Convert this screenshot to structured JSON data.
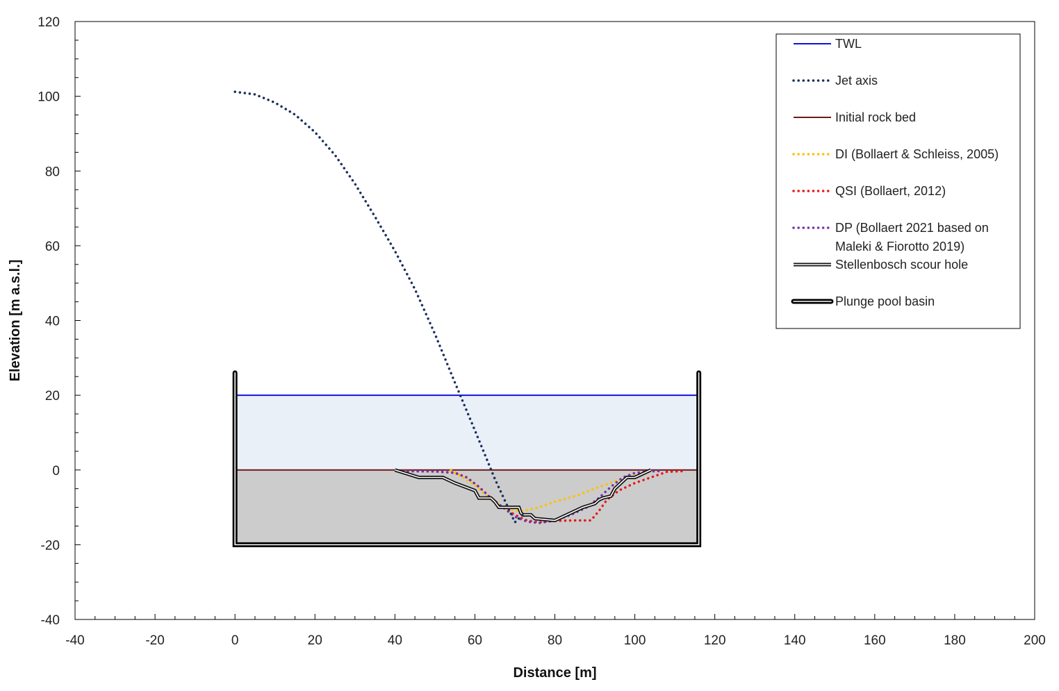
{
  "chart_data": {
    "type": "line",
    "xlabel": "Distance [m]",
    "ylabel": "Elevation [m a.s.l.]",
    "xlim": [
      -40,
      200
    ],
    "ylim": [
      -40,
      120
    ],
    "x_ticks": [
      -40,
      -20,
      0,
      20,
      40,
      60,
      80,
      100,
      120,
      140,
      160,
      180,
      200
    ],
    "y_ticks": [
      -40,
      -20,
      0,
      20,
      40,
      60,
      80,
      100,
      120
    ],
    "x_minor_step": 5,
    "y_minor_step": 5,
    "grid": false,
    "legend_position": "top-right",
    "basin_water_fill": "#eaf0f8",
    "basin_rock_fill": "#cccccc",
    "series": [
      {
        "name": "TWL",
        "style": "solid",
        "color": "#1010e0",
        "x": [
          0,
          116
        ],
        "y": [
          20,
          20
        ]
      },
      {
        "name": "Jet axis",
        "style": "dotted",
        "color": "#1a2f5e",
        "x": [
          0,
          5,
          10,
          15,
          20,
          25,
          30,
          35,
          40,
          45,
          50,
          55,
          60,
          65,
          70,
          72.5
        ],
        "y": [
          101.2,
          100.5,
          98.3,
          95.1,
          90.4,
          84.3,
          76.6,
          67.8,
          58.6,
          48.4,
          36.4,
          23.4,
          10.6,
          -2.4,
          -14.0,
          -11.4
        ]
      },
      {
        "name": "Initial rock bed",
        "style": "solid",
        "color": "#6b1a1a",
        "x": [
          0,
          116
        ],
        "y": [
          0,
          0
        ]
      },
      {
        "name": "DI (Bollaert & Schleiss, 2005)",
        "style": "dotted",
        "color": "#ffc000",
        "x": [
          54,
          60,
          64,
          68,
          72,
          76,
          80,
          85,
          90,
          95,
          100,
          104
        ],
        "y": [
          0,
          -4,
          -8,
          -10.5,
          -11,
          -10,
          -8.5,
          -7,
          -5,
          -3,
          -1.5,
          -0.2
        ]
      },
      {
        "name": "QSI (Bollaert, 2012)",
        "style": "dotted",
        "color": "#e81818",
        "x": [
          42,
          50,
          55,
          58,
          61,
          64,
          67,
          70,
          73,
          76,
          80,
          85,
          89,
          91,
          93,
          96,
          100,
          104,
          108,
          112
        ],
        "y": [
          -0.3,
          -0.4,
          -0.8,
          -2,
          -4.5,
          -7.5,
          -10,
          -12,
          -13.5,
          -14,
          -13.6,
          -13.5,
          -13.5,
          -11,
          -8,
          -5.5,
          -3.5,
          -2,
          -0.5,
          -0.3
        ]
      },
      {
        "name": "DP (Bollaert 2021 based on Maleki & Fiorotto 2019)",
        "style": "dotted",
        "color": "#7a33a8",
        "x": [
          42,
          50,
          55,
          58,
          61,
          64,
          67,
          70,
          73,
          76,
          80,
          84,
          88,
          91,
          94,
          97,
          100,
          103,
          106
        ],
        "y": [
          -0.3,
          -0.4,
          -0.7,
          -2,
          -4.5,
          -7.5,
          -10,
          -12.5,
          -13.8,
          -14.2,
          -13.5,
          -12,
          -10,
          -7.5,
          -4.5,
          -2,
          -0.8,
          -0.4,
          -0.3
        ]
      },
      {
        "name": "Stellenbosch scour hole",
        "style": "double",
        "color": "#111111",
        "x": [
          40,
          46,
          52,
          55,
          60,
          61,
          62,
          64,
          65,
          66,
          71,
          71.5,
          72,
          74,
          75,
          80,
          84,
          87,
          90,
          91,
          92,
          94,
          95,
          96,
          97,
          98,
          100,
          101,
          104
        ],
        "y": [
          0,
          -2,
          -2,
          -3.5,
          -5.5,
          -7.5,
          -7.5,
          -7.5,
          -8.5,
          -10,
          -10,
          -11.5,
          -12,
          -12,
          -13,
          -13.5,
          -11.5,
          -10,
          -9,
          -8,
          -7.5,
          -7,
          -5,
          -4,
          -3,
          -2,
          -2,
          -1.5,
          0
        ]
      },
      {
        "name": "Plunge pool basin",
        "style": "double-thick",
        "color": "#000000",
        "x": [
          0,
          0,
          116,
          116
        ],
        "y": [
          26,
          -20,
          -20,
          26
        ]
      }
    ]
  },
  "legend": {
    "items": [
      {
        "lines": [
          "TWL"
        ],
        "series": "TWL"
      },
      {
        "lines": [
          "Jet axis"
        ],
        "series": "Jet axis"
      },
      {
        "lines": [
          "Initial rock bed"
        ],
        "series": "Initial rock bed"
      },
      {
        "lines": [
          "DI (Bollaert & Schleiss, 2005)"
        ],
        "series": "DI (Bollaert & Schleiss, 2005)"
      },
      {
        "lines": [
          "QSI (Bollaert, 2012)"
        ],
        "series": "QSI (Bollaert, 2012)"
      },
      {
        "lines": [
          "DP (Bollaert 2021 based on",
          "Maleki & Fiorotto 2019)"
        ],
        "series": "DP (Bollaert 2021 based on Maleki & Fiorotto 2019)"
      },
      {
        "lines": [
          "Stellenbosch scour hole"
        ],
        "series": "Stellenbosch scour hole"
      },
      {
        "lines": [
          "Plunge pool basin"
        ],
        "series": "Plunge pool basin"
      }
    ]
  }
}
